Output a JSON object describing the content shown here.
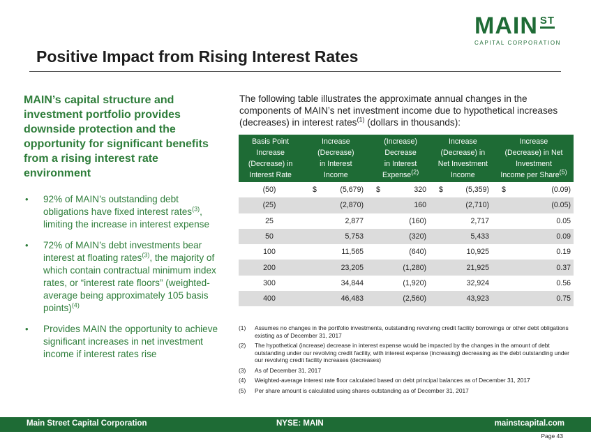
{
  "logo": {
    "main": "MAIN",
    "st": "ST",
    "sub": "CAPITAL CORPORATION"
  },
  "title": "Positive Impact from Rising Interest Rates",
  "left": {
    "lead": "MAIN’s capital structure and investment portfolio provides downside protection and the opportunity for significant benefits from a rising interest rate environment",
    "bullets": [
      {
        "pre": "92% of MAIN’s outstanding debt obligations have fixed interest rates",
        "sup": "(3)",
        "post": ", limiting the increase in interest expense"
      },
      {
        "pre": "72% of MAIN’s debt investments bear interest at floating rates",
        "sup": "(3)",
        "post": ", the majority of which contain contractual minimum index rates, or “interest rate floors” (weighted-average being approximately 105 basis points)",
        "sup2": "(4)"
      },
      {
        "pre": "Provides MAIN the opportunity to achieve significant increases in net investment income if interest rates rise"
      }
    ]
  },
  "intro": {
    "pre": "The following table illustrates the approximate annual changes in the components of MAIN’s net investment income due to hypothetical increases (decreases) in interest rates",
    "sup": "(1)",
    "post": " (dollars in thousands):"
  },
  "table": {
    "headers": [
      {
        "lines": [
          "Basis Point",
          "Increase",
          "(Decrease) in",
          "Interest Rate"
        ]
      },
      {
        "lines": [
          "Increase",
          "(Decrease)",
          "in Interest",
          "Income"
        ]
      },
      {
        "lines": [
          "(Increase)",
          "Decrease",
          "in Interest",
          "Expense"
        ],
        "sup": "(2)"
      },
      {
        "lines": [
          "Increase",
          "(Decrease) in",
          "Net Investment",
          "Income"
        ]
      },
      {
        "lines": [
          "Increase",
          "(Decrease) in Net",
          "Investment",
          "Income per Share"
        ],
        "sup": "(5)"
      }
    ],
    "currency": "$",
    "rows": [
      [
        "(50)",
        "(5,679)",
        "320",
        "(5,359)",
        "(0.09)"
      ],
      [
        "(25)",
        "(2,870)",
        "160",
        "(2,710)",
        "(0.05)"
      ],
      [
        "25",
        "2,877",
        "(160)",
        "2,717",
        "0.05"
      ],
      [
        "50",
        "5,753",
        "(320)",
        "5,433",
        "0.09"
      ],
      [
        "100",
        "11,565",
        "(640)",
        "10,925",
        "0.19"
      ],
      [
        "200",
        "23,205",
        "(1,280)",
        "21,925",
        "0.37"
      ],
      [
        "300",
        "34,844",
        "(1,920)",
        "32,924",
        "0.56"
      ],
      [
        "400",
        "46,483",
        "(2,560)",
        "43,923",
        "0.75"
      ]
    ]
  },
  "notes": [
    {
      "num": "(1)",
      "text": "Assumes no changes in the portfolio investments, outstanding revolving credit facility borrowings or other debt obligations existing as of December 31, 2017"
    },
    {
      "num": "(2)",
      "text": "The hypothetical (increase) decrease in interest expense would be impacted by the changes in the amount of debt outstanding under our revolving credit facility, with interest expense (increasing) decreasing as the debt outstanding under our revolving credit facility increases (decreases)"
    },
    {
      "num": "(3)",
      "text": "As of December 31, 2017"
    },
    {
      "num": "(4)",
      "text": "Weighted-average interest rate floor calculated based on debt principal balances as of December 31, 2017"
    },
    {
      "num": "(5)",
      "text": "Per share amount is calculated using shares outstanding as of December 31, 2017"
    }
  ],
  "footer": {
    "left": "Main Street Capital Corporation",
    "center": "NYSE: MAIN",
    "right": "mainstcapital.com"
  },
  "page": "Page 43",
  "colors": {
    "brand_green": "#1e6b35",
    "text_green": "#2e7d3a",
    "row_shade": "#dcdcdc"
  }
}
